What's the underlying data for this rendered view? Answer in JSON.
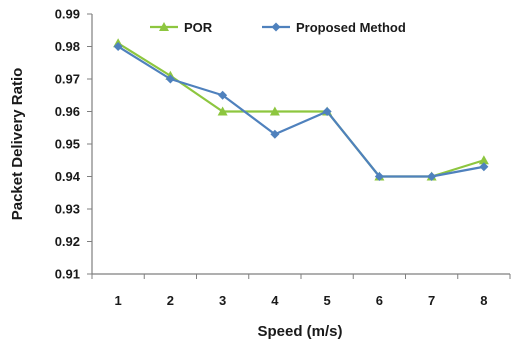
{
  "chart_data": {
    "type": "line",
    "title": "",
    "xlabel": "Speed (m/s)",
    "ylabel": "Packet Delivery Ratio",
    "categories": [
      "1",
      "2",
      "3",
      "4",
      "5",
      "6",
      "7",
      "8"
    ],
    "ylim": [
      0.91,
      0.99
    ],
    "yticks": [
      "0.91",
      "0.92",
      "0.93",
      "0.94",
      "0.95",
      "0.96",
      "0.97",
      "0.98",
      "0.99"
    ],
    "grid": false,
    "legend": "top",
    "series": [
      {
        "name": "POR",
        "color": "#8dc63f",
        "marker": "triangle",
        "values": [
          0.981,
          0.971,
          0.96,
          0.96,
          0.96,
          0.94,
          0.94,
          0.945
        ]
      },
      {
        "name": "Proposed Method",
        "color": "#4f81bd",
        "marker": "diamond",
        "values": [
          0.98,
          0.97,
          0.965,
          0.953,
          0.96,
          0.94,
          0.94,
          0.943
        ]
      }
    ]
  }
}
